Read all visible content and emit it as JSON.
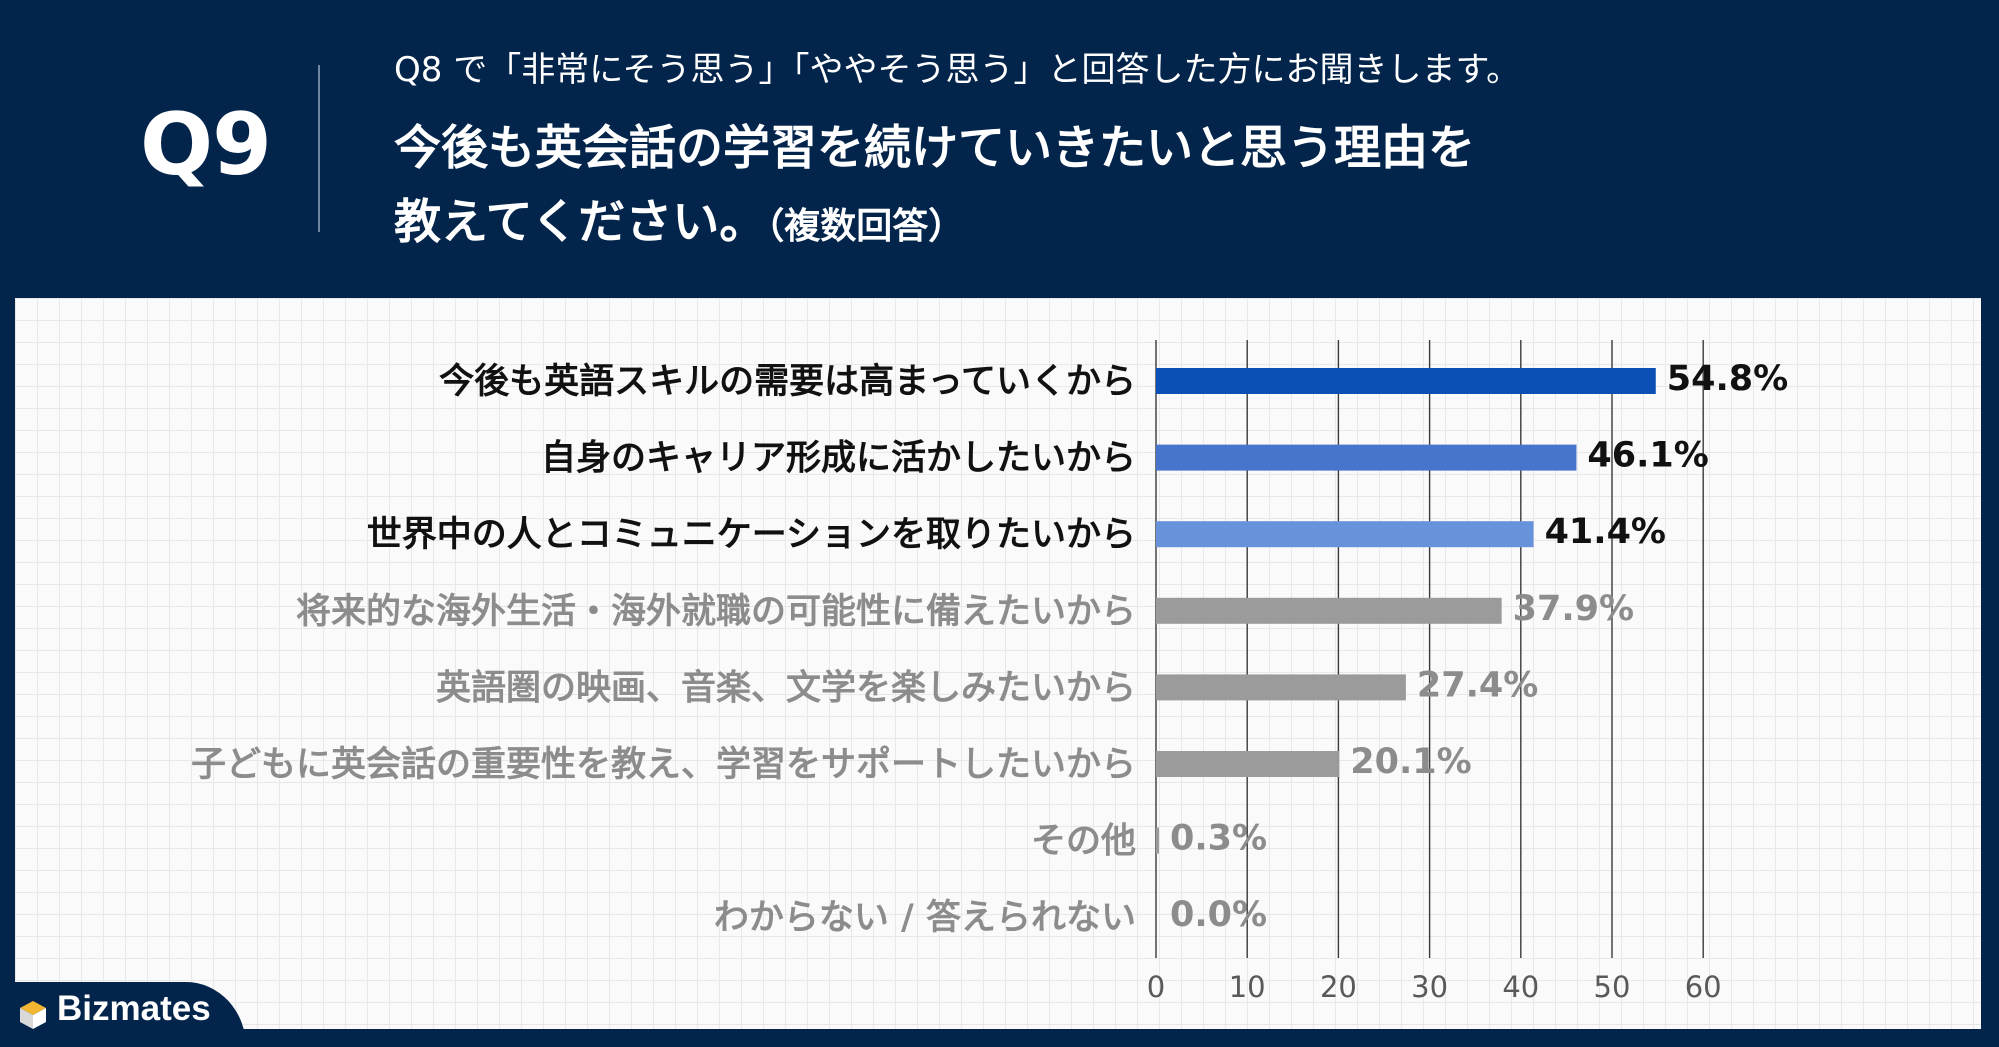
{
  "header": {
    "question_number": "Q9",
    "subtitle": "Q8 で「非常にそう思う」「ややそう思う」と回答した方にお聞きします。",
    "title_line1": "今後も英会話の学習を続けていきたいと思う理由を",
    "title_line2": "教えてください。",
    "title_note": "（複数回答）"
  },
  "brand": {
    "name": "Bizmates"
  },
  "colors": {
    "background": "#03254b",
    "highlight_1": "#0b50b5",
    "highlight_2": "#4775cb",
    "highlight_3": "#6892d9",
    "gray_bar": "#9b9b9b",
    "gray_text": "#8c8c8c"
  },
  "chart_data": {
    "type": "bar",
    "orientation": "horizontal",
    "categories": [
      "今後も英語スキルの需要は高まっていくから",
      "自身のキャリア形成に活かしたいから",
      "世界中の人とコミュニケーションを取りたいから",
      "将来的な海外生活・海外就職の可能性に備えたいから",
      "英語圏の映画、音楽、文学を楽しみたいから",
      "子どもに英会話の重要性を教え、学習をサポートしたいから",
      "その他",
      "わからない / 答えられない"
    ],
    "values": [
      54.8,
      46.1,
      41.4,
      37.9,
      27.4,
      20.1,
      0.3,
      0.0
    ],
    "value_labels": [
      "54.8%",
      "46.1%",
      "41.4%",
      "37.9%",
      "27.4%",
      "20.1%",
      "0.3%",
      "0.0%"
    ],
    "x_ticks": [
      "0",
      "10",
      "20",
      "30",
      "40",
      "50",
      "60"
    ],
    "xlim": [
      0,
      60
    ],
    "grid": true,
    "bar_colors": [
      "#0b50b5",
      "#4775cb",
      "#6892d9",
      "#9b9b9b",
      "#9b9b9b",
      "#9b9b9b",
      "#9b9b9b",
      "#9b9b9b"
    ],
    "label_colors": [
      "#111111",
      "#111111",
      "#111111",
      "#8c8c8c",
      "#8c8c8c",
      "#8c8c8c",
      "#8c8c8c",
      "#8c8c8c"
    ]
  }
}
